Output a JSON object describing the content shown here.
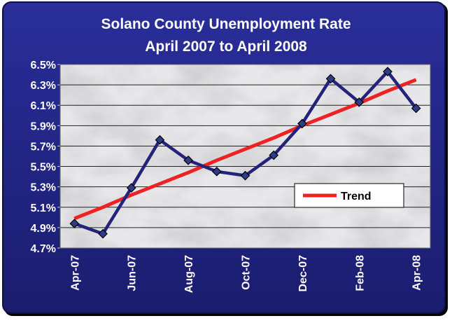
{
  "chart_data": {
    "type": "line",
    "title": "Solano County Unemployment Rate",
    "subtitle": "April 2007 to April 2008",
    "categories": [
      "Apr-07",
      null,
      "Jun-07",
      null,
      "Aug-07",
      null,
      "Oct-07",
      null,
      "Dec-07",
      null,
      "Feb-08",
      null,
      "Apr-08"
    ],
    "series": [
      {
        "color": "#23237a",
        "values": [
          4.94,
          4.84,
          5.29,
          5.76,
          5.56,
          5.45,
          5.41,
          5.61,
          5.92,
          6.36,
          6.13,
          6.43,
          6.07
        ]
      },
      {
        "name": "Trend",
        "color": "#ee2222",
        "values": [
          4.99,
          5.1,
          5.22,
          5.33,
          5.44,
          5.56,
          5.67,
          5.78,
          5.9,
          6.01,
          6.12,
          6.24,
          6.35
        ]
      }
    ],
    "ylim": [
      4.7,
      6.5
    ],
    "yticks": [
      {
        "value": 4.7,
        "label": "4.7%"
      },
      {
        "value": 4.9,
        "label": "4.9%"
      },
      {
        "value": 5.1,
        "label": "5.1%"
      },
      {
        "value": 5.3,
        "label": "5.3%"
      },
      {
        "value": 5.5,
        "label": "5.5%"
      },
      {
        "value": 5.7,
        "label": "5.7%"
      },
      {
        "value": 5.9,
        "label": "5.9%"
      },
      {
        "value": 6.1,
        "label": "6.1%"
      },
      {
        "value": 6.3,
        "label": "6.3%"
      },
      {
        "value": 6.5,
        "label": "6.5%"
      }
    ],
    "grid": true,
    "legend": "lower-right"
  }
}
